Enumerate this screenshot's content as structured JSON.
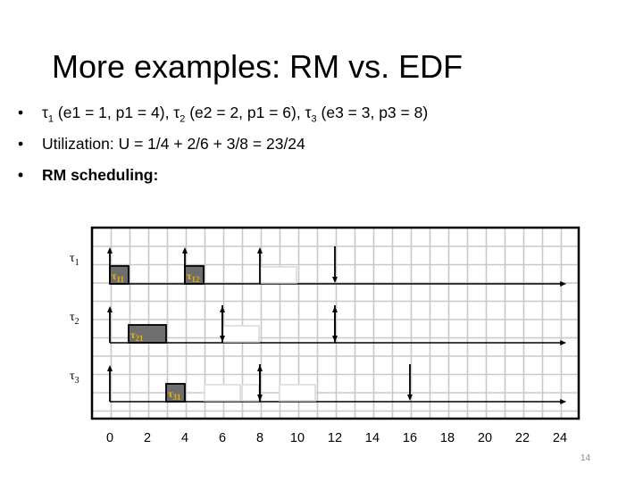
{
  "slide": {
    "title": "More examples: RM vs. EDF",
    "page_number": "14",
    "bullets": [
      {
        "runs": [
          {
            "t": "τ"
          },
          {
            "t": "1",
            "sub": true
          },
          {
            "t": " (e1 = 1, p1 = 4), τ"
          },
          {
            "t": "2",
            "sub": true
          },
          {
            "t": " (e2 = 2, p1 = 6), τ"
          },
          {
            "t": "3",
            "sub": true
          },
          {
            "t": " (e3 = 3, p3 = 8)"
          }
        ],
        "bold": false
      },
      {
        "runs": [
          {
            "t": "Utilization: U = 1/4 + 2/6 + 3/8 = 23/24"
          }
        ],
        "bold": false
      },
      {
        "runs": [
          {
            "t": "RM scheduling:"
          }
        ],
        "bold": true
      }
    ]
  },
  "chart_data": {
    "type": "timeline",
    "x_ticks": [
      "0",
      "2",
      "4",
      "6",
      "8",
      "10",
      "12",
      "14",
      "16",
      "18",
      "20",
      "22",
      "24"
    ],
    "x_range": [
      0,
      24
    ],
    "grid": true,
    "rows": [
      {
        "label": "τ",
        "label_sub": "1",
        "release_arrows_up": [
          0,
          4,
          8
        ],
        "deadline_arrows_down": [
          12
        ],
        "executed_jobs": [
          {
            "label": "τ",
            "label_sub": "11",
            "start": 0,
            "end": 1
          },
          {
            "label": "τ",
            "label_sub": "12",
            "start": 4,
            "end": 5
          }
        ],
        "pending_outlines": [
          {
            "start": 8,
            "end": 10
          }
        ]
      },
      {
        "label": "τ",
        "label_sub": "2",
        "release_arrows_up": [
          0,
          6,
          12
        ],
        "deadline_arrows_down": [
          6,
          12
        ],
        "executed_jobs": [
          {
            "label": "τ",
            "label_sub": "21",
            "start": 1,
            "end": 3
          }
        ],
        "pending_outlines": [
          {
            "start": 6,
            "end": 8
          }
        ]
      },
      {
        "label": "τ",
        "label_sub": "3",
        "release_arrows_up": [
          0,
          8
        ],
        "deadline_arrows_down": [
          8,
          16
        ],
        "executed_jobs": [
          {
            "label": "τ",
            "label_sub": "31",
            "start": 3,
            "end": 4
          }
        ],
        "pending_outlines": [
          {
            "start": 5,
            "end": 7
          },
          {
            "start": 7,
            "end": 8
          },
          {
            "start": 9,
            "end": 11
          }
        ]
      }
    ]
  },
  "colors": {
    "job_fill": "#6e6e6e",
    "job_label": "#f0b400",
    "grid": "#c8c8c8",
    "frame": "#000000",
    "page_number": "#8a8a8a"
  }
}
